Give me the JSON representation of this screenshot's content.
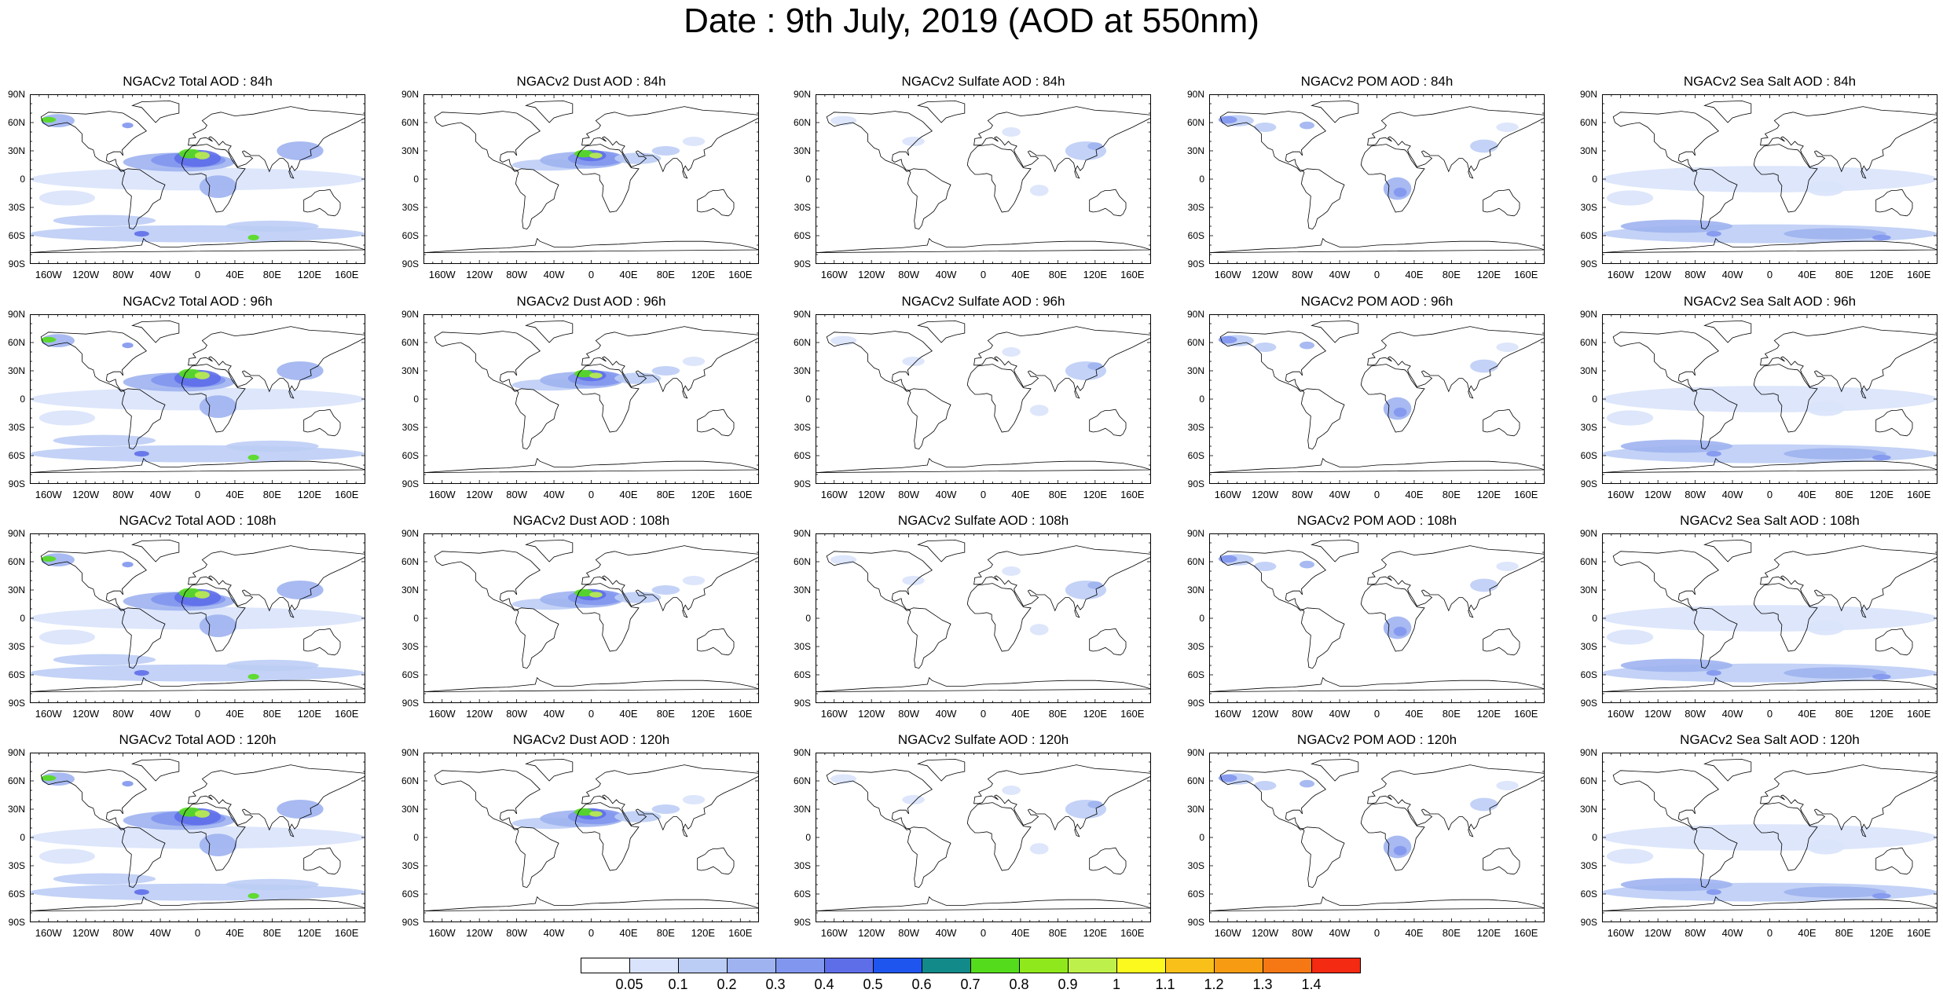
{
  "title": "Date : 9th July, 2019 (AOD at 550nm)",
  "lat_labels": [
    "90N",
    "60N",
    "30N",
    "0",
    "30S",
    "60S",
    "90S"
  ],
  "lon_labels": [
    "160W",
    "120W",
    "80W",
    "40W",
    "0",
    "40E",
    "80E",
    "120E",
    "160E"
  ],
  "panels": [
    {
      "title": "NGACv2 Total AOD : 84h",
      "species": "total"
    },
    {
      "title": "NGACv2 Dust AOD : 84h",
      "species": "dust"
    },
    {
      "title": "NGACv2 Sulfate AOD : 84h",
      "species": "sulfate"
    },
    {
      "title": "NGACv2 POM AOD : 84h",
      "species": "pom"
    },
    {
      "title": "NGACv2 Sea Salt AOD : 84h",
      "species": "seasalt"
    },
    {
      "title": "NGACv2 Total AOD : 96h",
      "species": "total"
    },
    {
      "title": "NGACv2 Dust AOD : 96h",
      "species": "dust"
    },
    {
      "title": "NGACv2 Sulfate AOD : 96h",
      "species": "sulfate"
    },
    {
      "title": "NGACv2 POM AOD : 96h",
      "species": "pom"
    },
    {
      "title": "NGACv2 Sea Salt AOD : 96h",
      "species": "seasalt"
    },
    {
      "title": "NGACv2 Total AOD : 108h",
      "species": "total"
    },
    {
      "title": "NGACv2 Dust AOD : 108h",
      "species": "dust"
    },
    {
      "title": "NGACv2 Sulfate AOD : 108h",
      "species": "sulfate"
    },
    {
      "title": "NGACv2 POM AOD : 108h",
      "species": "pom"
    },
    {
      "title": "NGACv2 Sea Salt AOD : 108h",
      "species": "seasalt"
    },
    {
      "title": "NGACv2 Total AOD : 120h",
      "species": "total"
    },
    {
      "title": "NGACv2 Dust AOD : 120h",
      "species": "dust"
    },
    {
      "title": "NGACv2 Sulfate AOD : 120h",
      "species": "sulfate"
    },
    {
      "title": "NGACv2 POM AOD : 120h",
      "species": "pom"
    },
    {
      "title": "NGACv2 Sea Salt  AOD : 120h",
      "species": "seasalt"
    }
  ],
  "colorbar": {
    "labels": [
      "0.05",
      "0.1",
      "0.2",
      "0.3",
      "0.4",
      "0.5",
      "0.6",
      "0.7",
      "0.8",
      "0.9",
      "1",
      "1.1",
      "1.2",
      "1.3",
      "1.4"
    ],
    "colors": [
      "#ffffff",
      "#d9e3fb",
      "#bccdf5",
      "#9fb3f0",
      "#8196ee",
      "#5e6ee9",
      "#1f55ef",
      "#128a8a",
      "#54dc1c",
      "#8fe81b",
      "#bdf04a",
      "#fbf91d",
      "#f9c01a",
      "#f79c12",
      "#f57814",
      "#f52a12"
    ]
  }
}
